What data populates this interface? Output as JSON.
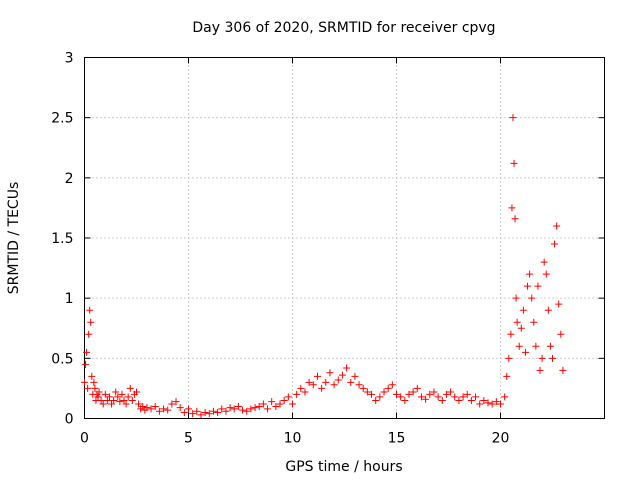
{
  "chart_data": {
    "type": "scatter",
    "title": "Day 306 of 2020, SRMTID for receiver cpvg",
    "xlabel": "GPS time / hours",
    "ylabel": "SRMTID / TECUs",
    "xlim": [
      0,
      25
    ],
    "ylim": [
      0,
      3
    ],
    "xticks": [
      0,
      5,
      10,
      15,
      20
    ],
    "yticks": [
      0,
      0.5,
      1,
      1.5,
      2,
      2.5,
      3
    ],
    "xtick_labels": [
      "0",
      "5",
      "10",
      "15",
      "20"
    ],
    "ytick_labels": [
      "0",
      "0.5",
      "1",
      "1.5",
      "2",
      "2.5",
      "3"
    ],
    "grid": true,
    "marker": "+",
    "color": "#ff0000",
    "series": [
      {
        "name": "SRMTID",
        "x": [
          0.0,
          0.05,
          0.1,
          0.15,
          0.2,
          0.25,
          0.3,
          0.35,
          0.4,
          0.45,
          0.5,
          0.55,
          0.6,
          0.65,
          0.7,
          0.8,
          0.9,
          1.0,
          1.1,
          1.2,
          1.3,
          1.4,
          1.5,
          1.6,
          1.7,
          1.8,
          1.9,
          2.0,
          2.1,
          2.2,
          2.3,
          2.4,
          2.5,
          2.6,
          2.7,
          2.8,
          2.9,
          3.0,
          3.2,
          3.4,
          3.6,
          3.8,
          4.0,
          4.2,
          4.4,
          4.6,
          4.8,
          5.0,
          5.2,
          5.4,
          5.6,
          5.8,
          6.0,
          6.2,
          6.4,
          6.6,
          6.8,
          7.0,
          7.2,
          7.4,
          7.6,
          7.8,
          8.0,
          8.2,
          8.4,
          8.6,
          8.8,
          9.0,
          9.2,
          9.4,
          9.6,
          9.8,
          10.0,
          10.2,
          10.4,
          10.6,
          10.8,
          11.0,
          11.2,
          11.4,
          11.6,
          11.8,
          12.0,
          12.2,
          12.4,
          12.6,
          12.8,
          13.0,
          13.2,
          13.4,
          13.6,
          13.8,
          14.0,
          14.2,
          14.4,
          14.6,
          14.8,
          15.0,
          15.2,
          15.4,
          15.6,
          15.8,
          16.0,
          16.2,
          16.4,
          16.6,
          16.8,
          17.0,
          17.2,
          17.4,
          17.6,
          17.8,
          18.0,
          18.2,
          18.4,
          18.6,
          18.8,
          19.0,
          19.2,
          19.4,
          19.6,
          19.8,
          20.0,
          20.2,
          20.3,
          20.4,
          20.5,
          20.55,
          20.6,
          20.65,
          20.7,
          20.75,
          20.8,
          20.9,
          21.0,
          21.1,
          21.2,
          21.3,
          21.4,
          21.5,
          21.6,
          21.7,
          21.8,
          21.9,
          22.0,
          22.1,
          22.2,
          22.3,
          22.4,
          22.5,
          22.6,
          22.7,
          22.8,
          22.9,
          23.0
        ],
        "y": [
          0.3,
          0.45,
          0.55,
          0.25,
          0.7,
          0.9,
          0.8,
          0.35,
          0.2,
          0.3,
          0.25,
          0.15,
          0.2,
          0.18,
          0.22,
          0.15,
          0.12,
          0.2,
          0.15,
          0.18,
          0.12,
          0.15,
          0.22,
          0.18,
          0.14,
          0.2,
          0.15,
          0.12,
          0.18,
          0.25,
          0.15,
          0.2,
          0.22,
          0.12,
          0.08,
          0.1,
          0.07,
          0.09,
          0.08,
          0.1,
          0.06,
          0.08,
          0.07,
          0.12,
          0.14,
          0.09,
          0.05,
          0.08,
          0.04,
          0.06,
          0.03,
          0.05,
          0.04,
          0.06,
          0.05,
          0.08,
          0.06,
          0.09,
          0.08,
          0.1,
          0.07,
          0.06,
          0.08,
          0.09,
          0.1,
          0.12,
          0.08,
          0.14,
          0.1,
          0.12,
          0.15,
          0.18,
          0.12,
          0.2,
          0.25,
          0.22,
          0.3,
          0.28,
          0.35,
          0.25,
          0.3,
          0.38,
          0.28,
          0.32,
          0.36,
          0.42,
          0.3,
          0.35,
          0.28,
          0.25,
          0.22,
          0.2,
          0.15,
          0.18,
          0.22,
          0.25,
          0.28,
          0.2,
          0.18,
          0.15,
          0.2,
          0.22,
          0.25,
          0.18,
          0.16,
          0.2,
          0.22,
          0.18,
          0.15,
          0.2,
          0.22,
          0.18,
          0.15,
          0.18,
          0.2,
          0.15,
          0.18,
          0.12,
          0.15,
          0.13,
          0.12,
          0.14,
          0.12,
          0.18,
          0.35,
          0.5,
          0.7,
          1.75,
          2.5,
          2.12,
          1.66,
          1.0,
          0.8,
          0.6,
          0.75,
          0.9,
          0.55,
          1.1,
          1.2,
          1.0,
          0.8,
          0.6,
          1.1,
          0.4,
          0.5,
          1.3,
          1.2,
          0.9,
          0.6,
          0.5,
          1.45,
          1.6,
          0.95,
          0.7,
          0.4
        ]
      }
    ]
  }
}
